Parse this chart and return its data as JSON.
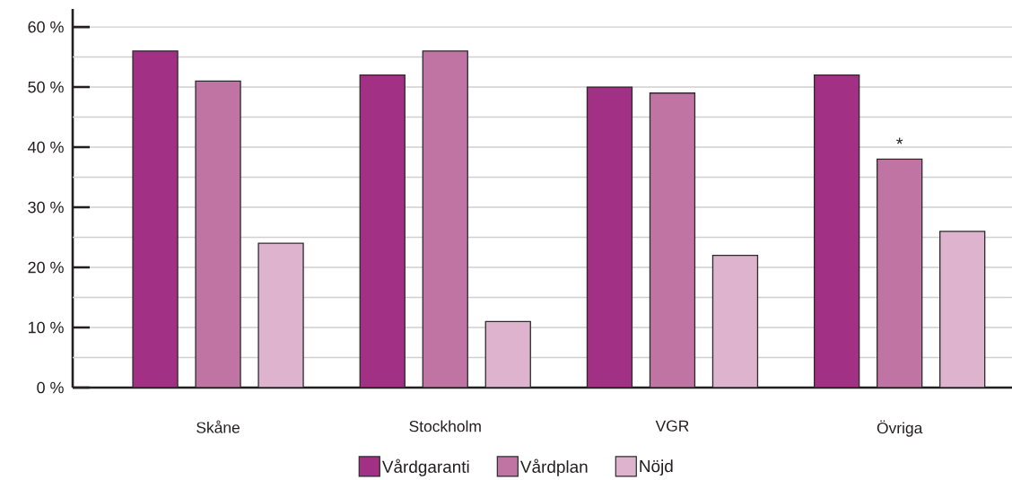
{
  "chart_data": {
    "type": "bar",
    "categories": [
      "Skåne",
      "Stockholm",
      "VGR",
      "Övriga"
    ],
    "series": [
      {
        "name": "Vårdgaranti",
        "color": "#a23085",
        "values": [
          56,
          52,
          50,
          52
        ]
      },
      {
        "name": "Vårdplan",
        "color": "#c074a4",
        "values": [
          51,
          56,
          49,
          38
        ],
        "value_labels": [
          null,
          null,
          null,
          "*"
        ]
      },
      {
        "name": "Nöjd",
        "color": "#deb3cd",
        "values": [
          24,
          11,
          22,
          26
        ]
      }
    ],
    "ylim": [
      0,
      63
    ],
    "yticks": [
      {
        "value": 0,
        "label": "0 %"
      },
      {
        "value": 5,
        "label": null
      },
      {
        "value": 10,
        "label": "10 %"
      },
      {
        "value": 15,
        "label": null
      },
      {
        "value": 20,
        "label": "20 %"
      },
      {
        "value": 25,
        "label": null
      },
      {
        "value": 30,
        "label": "30 %"
      },
      {
        "value": 35,
        "label": null
      },
      {
        "value": 40,
        "label": "40 %"
      },
      {
        "value": 45,
        "label": null
      },
      {
        "value": 50,
        "label": "50 %"
      },
      {
        "value": 55,
        "label": null
      },
      {
        "value": 60,
        "label": "60 %"
      }
    ],
    "grid": "y",
    "legend": "bottom"
  }
}
